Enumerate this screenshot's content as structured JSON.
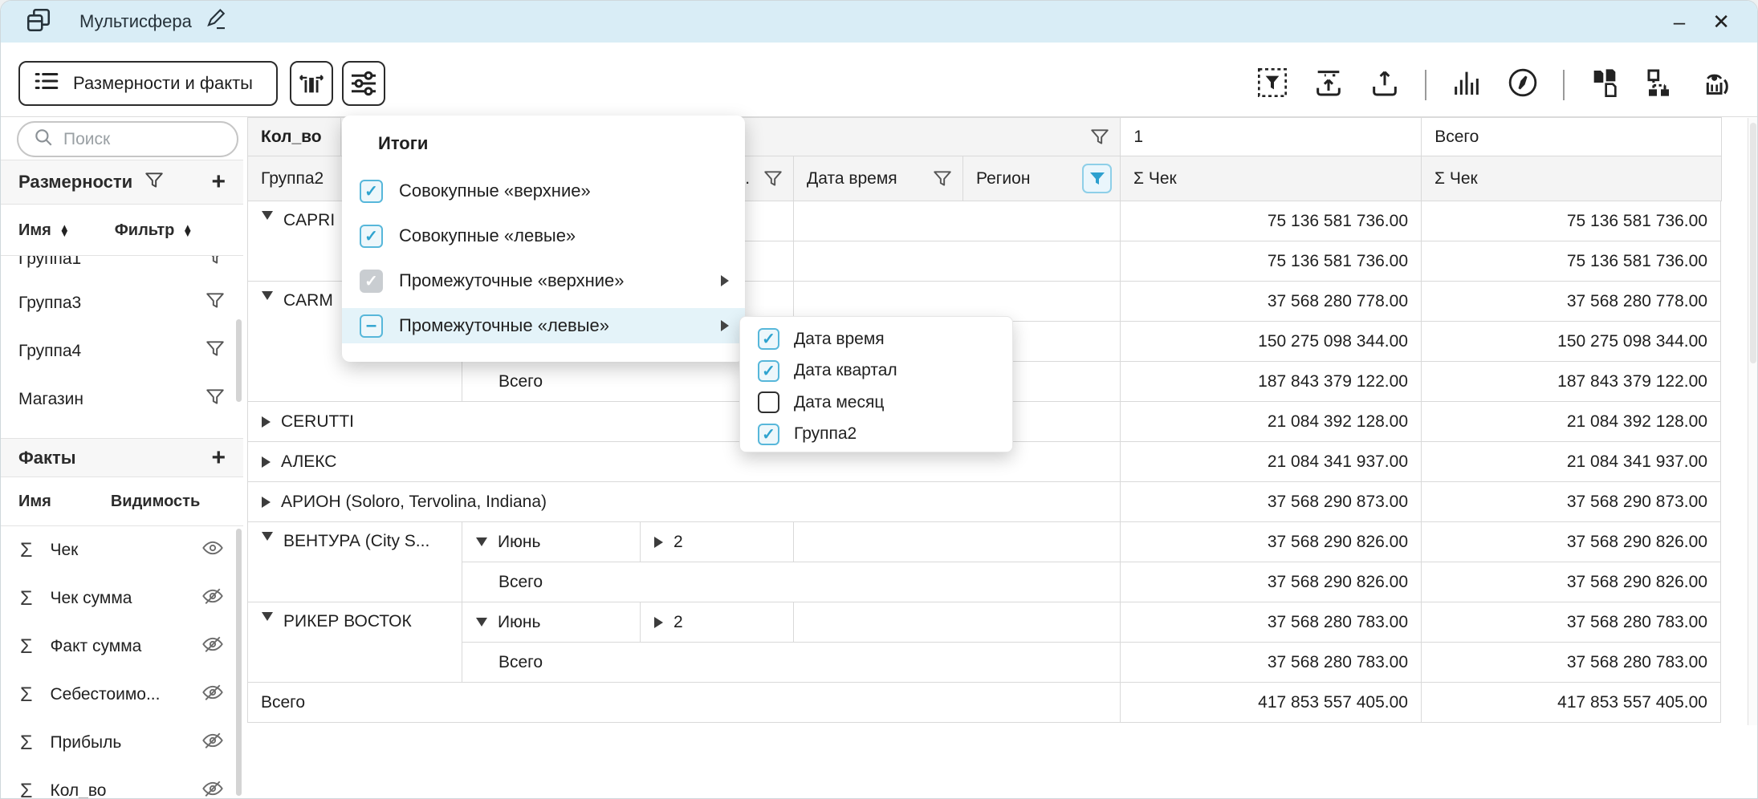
{
  "window": {
    "title": "Мультисфера",
    "minimize": "–",
    "close": "✕"
  },
  "toolbar": {
    "dims_facts_button": "Размерности и факты",
    "icon_buttons": [
      "column-width-icon",
      "sliders-icon"
    ],
    "right_icons": [
      "filter-selection-icon",
      "import-icon",
      "export-icon",
      "bar-chart-icon",
      "compass-icon",
      "copy-sheets-icon",
      "hierarchy-icon",
      "inspect-icon"
    ]
  },
  "sidebar": {
    "search_placeholder": "Поиск",
    "dimensions": {
      "title": "Размерности",
      "col_name": "Имя",
      "col_filter": "Фильтр",
      "items": [
        "Группа1",
        "Группа3",
        "Группа4",
        "Магазин"
      ]
    },
    "facts": {
      "title": "Факты",
      "col_name": "Имя",
      "col_visibility": "Видимость",
      "items": [
        {
          "label": "Чек",
          "visible": true
        },
        {
          "label": "Чек сумма",
          "visible": false
        },
        {
          "label": "Факт сумма",
          "visible": false
        },
        {
          "label": "Себестоимо...",
          "visible": false
        },
        {
          "label": "Прибыль",
          "visible": false
        },
        {
          "label": "Кол_во",
          "visible": false
        }
      ]
    }
  },
  "menu": {
    "title": "Итоги",
    "items": [
      {
        "label": "Совокупные «верхние»",
        "state": "checked",
        "submenu": false,
        "highlighted": false
      },
      {
        "label": "Совокупные «левые»",
        "state": "checked",
        "submenu": false,
        "highlighted": false
      },
      {
        "label": "Промежуточные «верхние»",
        "state": "disabled",
        "submenu": true,
        "highlighted": false
      },
      {
        "label": "Промежуточные «левые»",
        "state": "indet",
        "submenu": true,
        "highlighted": true
      }
    ]
  },
  "submenu": {
    "items": [
      {
        "label": "Дата время",
        "checked": true
      },
      {
        "label": "Дата квартал",
        "checked": true
      },
      {
        "label": "Дата месяц",
        "checked": false
      },
      {
        "label": "Группа2",
        "checked": true
      }
    ]
  },
  "table": {
    "measure": "Кол_во",
    "col_value": "1",
    "col_total": "Всего",
    "header2": [
      {
        "label": "Группа2",
        "funnel": "plain"
      },
      {
        "label": "",
        "funnel": "none"
      },
      {
        "label": "Дата кварт...",
        "funnel": "plain"
      },
      {
        "label": "Дата время",
        "funnel": "plain"
      },
      {
        "label": "Регион",
        "funnel": "active"
      },
      {
        "label": "Σ Чек",
        "funnel": "none"
      },
      {
        "label": "Σ Чек",
        "funnel": "none"
      }
    ],
    "body_rows": [
      {
        "values": [
          "75 136 581 736.00",
          "75 136 581 736.00"
        ],
        "cells": [
          {
            "col": 1,
            "rowspan": 2,
            "arrow": "open",
            "text": "CAPRI"
          },
          {
            "col": 2
          },
          {
            "col": 3
          },
          {
            "col": 4,
            "colspan": 2
          }
        ]
      },
      {
        "values": [
          "75 136 581 736.00",
          "75 136 581 736.00"
        ],
        "cells": [
          {
            "col": 2,
            "colspan": 2,
            "text": "Всего",
            "indent": 45
          },
          {
            "col": 4,
            "colspan": 2
          }
        ]
      },
      {
        "values": [
          "37 568 280 778.00",
          "37 568 280 778.00"
        ],
        "cells": [
          {
            "col": 1,
            "rowspan": 3,
            "arrow": "open",
            "text": "CARM"
          },
          {
            "col": 2
          },
          {
            "col": 3
          },
          {
            "col": 4,
            "colspan": 2
          }
        ]
      },
      {
        "values": [
          "150 275 098 344.00",
          "150 275 098 344.00"
        ],
        "cells": [
          {
            "col": 2
          },
          {
            "col": 3
          },
          {
            "col": 4,
            "colspan": 2
          }
        ]
      },
      {
        "values": [
          "187 843 379 122.00",
          "187 843 379 122.00"
        ],
        "cells": [
          {
            "col": 2,
            "colspan": 2,
            "text": "Всего",
            "indent": 45
          },
          {
            "col": 4,
            "colspan": 2
          }
        ]
      },
      {
        "values": [
          "21 084 392 128.00",
          "21 084 392 128.00"
        ],
        "cells": [
          {
            "col": 1,
            "colspan": 5,
            "arrow": "closed",
            "text": "CERUTTI"
          }
        ]
      },
      {
        "values": [
          "21 084 341 937.00",
          "21 084 341 937.00"
        ],
        "cells": [
          {
            "col": 1,
            "colspan": 5,
            "arrow": "closed",
            "text": "АЛЕКС"
          }
        ]
      },
      {
        "values": [
          "37 568 290 873.00",
          "37 568 290 873.00"
        ],
        "cells": [
          {
            "col": 1,
            "colspan": 5,
            "arrow": "closed",
            "text": "АРИОН (Soloro, Tervolina, Indiana)"
          }
        ]
      },
      {
        "values": [
          "37 568 290 826.00",
          "37 568 290 826.00"
        ],
        "cells": [
          {
            "col": 1,
            "rowspan": 2,
            "arrow": "open",
            "text": "ВЕНТУРА (City S..."
          },
          {
            "col": 2,
            "arrow": "open",
            "text": "Июнь"
          },
          {
            "col": 3,
            "arrow": "closed",
            "text": "2"
          },
          {
            "col": 4,
            "colspan": 2
          }
        ]
      },
      {
        "values": [
          "37 568 290 826.00",
          "37 568 290 826.00"
        ],
        "cells": [
          {
            "col": 2,
            "colspan": 4,
            "text": "Всего",
            "indent": 45
          }
        ]
      },
      {
        "values": [
          "37 568 280 783.00",
          "37 568 280 783.00"
        ],
        "cells": [
          {
            "col": 1,
            "rowspan": 2,
            "arrow": "open",
            "text": "РИКЕР ВОСТОК"
          },
          {
            "col": 2,
            "arrow": "open",
            "text": "Июнь"
          },
          {
            "col": 3,
            "arrow": "closed",
            "text": "2"
          },
          {
            "col": 4,
            "colspan": 2
          }
        ]
      },
      {
        "values": [
          "37 568 280 783.00",
          "37 568 280 783.00"
        ],
        "cells": [
          {
            "col": 2,
            "colspan": 4,
            "text": "Всего",
            "indent": 45
          }
        ]
      },
      {
        "values": [
          "417 853 557 405.00",
          "417 853 557 405.00"
        ],
        "cells": [
          {
            "col": 1,
            "colspan": 5,
            "text": "Всего",
            "indent": 16
          }
        ]
      }
    ]
  },
  "colors": {
    "accent": "#2da0cf",
    "titlebar": "#d9edf6",
    "menu_highlight": "#e4f3f9"
  }
}
